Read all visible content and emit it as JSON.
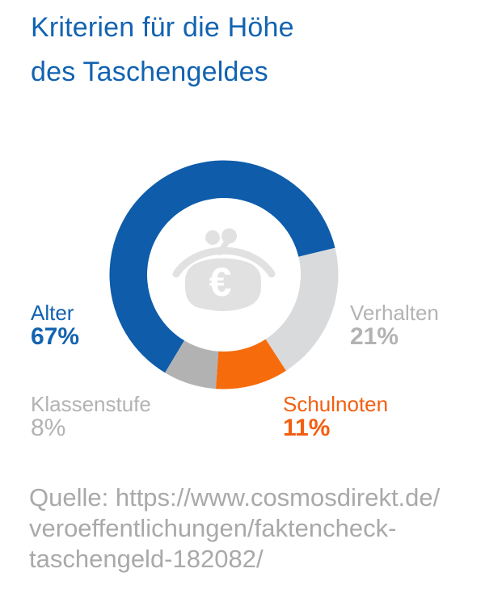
{
  "title": {
    "text": "Kriterien für die Höhe des Taschengeldes",
    "lines": [
      "Kriterien für die Höhe",
      "des Taschengeldes"
    ],
    "color": "#1263b1"
  },
  "chart_data": {
    "type": "pie",
    "variant": "donut",
    "title": "Kriterien für die Höhe des Taschengeldes",
    "unit": "%",
    "start_angle_deg": 211,
    "legend_position": "around-chart",
    "segments": [
      {
        "id": "alter",
        "label": "Alter",
        "value": 67,
        "display": "67%",
        "color": "#0e5caa",
        "label_color": "#1263b1"
      },
      {
        "id": "verhalten",
        "label": "Verhalten",
        "value": 21,
        "display": "21%",
        "color": "#d9dadc",
        "label_color": "#b3b3b3"
      },
      {
        "id": "schulnoten",
        "label": "Schulnoten",
        "value": 11,
        "display": "11%",
        "color": "#f66c0d",
        "label_color": "#f35f10"
      },
      {
        "id": "klassenstufe",
        "label": "Klassenstufe",
        "value": 8,
        "display": "8%",
        "color": "#b2b2b3",
        "label_color": "#b3b3b3"
      }
    ],
    "center_icon": {
      "name": "purse-euro",
      "symbol": "€",
      "color": "#e1e1e2",
      "symbol_color": "#ffffff"
    }
  },
  "source": {
    "lines": [
      "Quelle: https://www.cosmosdirekt.de/",
      "veroeffentlichungen/faktencheck-",
      "taschengeld-182082/"
    ],
    "color": "#a9a9a9"
  }
}
